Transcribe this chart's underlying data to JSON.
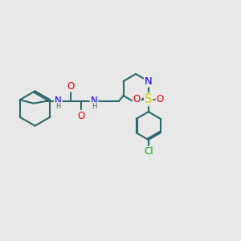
{
  "background_color": "#e8e8e8",
  "bond_color": "#2d6969",
  "atom_colors": {
    "N": "#0000ee",
    "O": "#dd0000",
    "S": "#cccc00",
    "Cl": "#00aa00",
    "H": "#555555"
  },
  "bond_lw": 1.5,
  "font_size": 8.5,
  "figsize": [
    3.0,
    3.0
  ],
  "dpi": 100,
  "xlim": [
    0,
    10
  ],
  "ylim": [
    0,
    10
  ]
}
